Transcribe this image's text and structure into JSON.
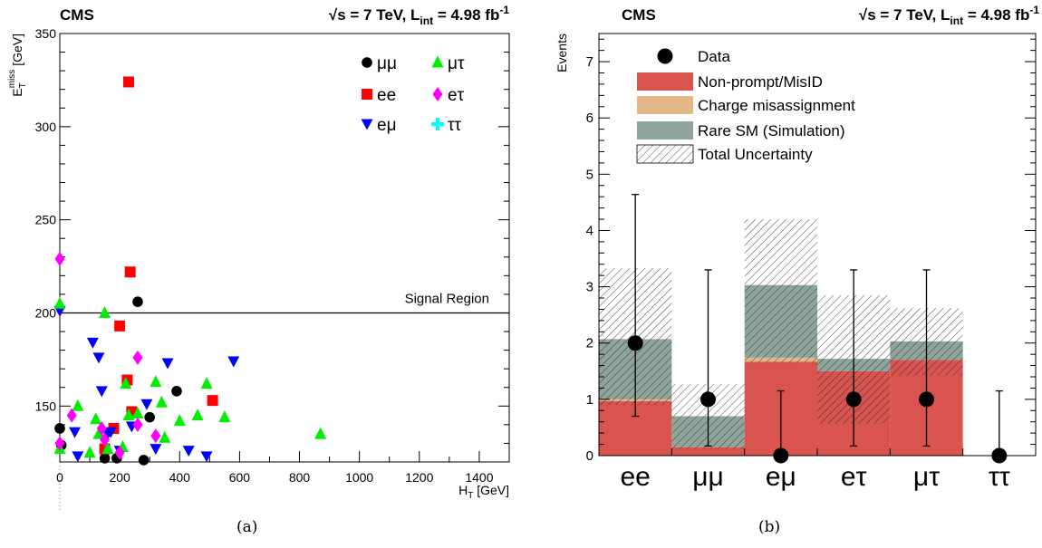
{
  "chart_data": [
    {
      "type": "scatter",
      "header_left": "CMS",
      "header_right": "√s = 7 TeV, L",
      "header_right_sub": "int",
      "header_right_tail": " = 4.98 fb",
      "header_right_sup": "-1",
      "xlabel": "H",
      "xlabel_sub": "T",
      "xlabel_tail": " [GeV]",
      "ylabel": "E",
      "ylabel_sub": "T",
      "ylabel_sup": "miss",
      "ylabel_tail": " [GeV]",
      "xlim": [
        0,
        1500
      ],
      "ylim": [
        120,
        350
      ],
      "xticks": [
        0,
        200,
        400,
        600,
        800,
        1000,
        1200,
        1400
      ],
      "yticks": [
        150,
        200,
        250,
        300,
        350
      ],
      "signal_region": {
        "y": 200,
        "label": "Signal Region"
      },
      "legend_placement": "top-right",
      "series": [
        {
          "name": "μμ",
          "marker": "circle",
          "color": "#000000",
          "points": [
            [
              0,
              138
            ],
            [
              5,
              129
            ],
            [
              150,
              122
            ],
            [
              190,
              122
            ],
            [
              260,
              206
            ],
            [
              280,
              121
            ],
            [
              300,
              144
            ],
            [
              390,
              158
            ]
          ]
        },
        {
          "name": "ee",
          "marker": "square",
          "color": "#ff0000",
          "points": [
            [
              150,
              127
            ],
            [
              180,
              138
            ],
            [
              200,
              193
            ],
            [
              225,
              164
            ],
            [
              230,
              324
            ],
            [
              235,
              222
            ],
            [
              240,
              147
            ],
            [
              510,
              153
            ]
          ]
        },
        {
          "name": "eμ",
          "marker": "tri-down",
          "color": "#0000ff",
          "points": [
            [
              0,
              201
            ],
            [
              50,
              136
            ],
            [
              60,
              123
            ],
            [
              110,
              184
            ],
            [
              130,
              176
            ],
            [
              140,
              158
            ],
            [
              160,
              135
            ],
            [
              170,
              136
            ],
            [
              200,
              126
            ],
            [
              240,
              139
            ],
            [
              290,
              151
            ],
            [
              320,
              127
            ],
            [
              360,
              173
            ],
            [
              430,
              126
            ],
            [
              490,
              123
            ],
            [
              580,
              174
            ]
          ]
        },
        {
          "name": "μτ",
          "marker": "tri-up",
          "color": "#00ee00",
          "points": [
            [
              0,
              127
            ],
            [
              0,
              205
            ],
            [
              60,
              150
            ],
            [
              100,
              125
            ],
            [
              120,
              143
            ],
            [
              130,
              135
            ],
            [
              150,
              200
            ],
            [
              160,
              127
            ],
            [
              210,
              128
            ],
            [
              220,
              162
            ],
            [
              230,
              145
            ],
            [
              260,
              146
            ],
            [
              320,
              163
            ],
            [
              340,
              152
            ],
            [
              350,
              133
            ],
            [
              400,
              142
            ],
            [
              460,
              145
            ],
            [
              490,
              162
            ],
            [
              550,
              144
            ],
            [
              870,
              135
            ]
          ]
        },
        {
          "name": "eτ",
          "marker": "diamond",
          "color": "#ff00ff",
          "points": [
            [
              0,
              130
            ],
            [
              0,
              229
            ],
            [
              40,
              145
            ],
            [
              140,
              138
            ],
            [
              150,
              132
            ],
            [
              200,
              125
            ],
            [
              260,
              176
            ],
            [
              260,
              140
            ],
            [
              320,
              134
            ]
          ]
        },
        {
          "name": "ττ",
          "marker": "cross",
          "color": "#00ffff",
          "points": []
        }
      ]
    },
    {
      "type": "bar",
      "stacked": true,
      "header_left": "CMS",
      "header_right": "√s = 7 TeV, L",
      "header_right_sub": "int",
      "header_right_tail": " = 4.98 fb",
      "header_right_sup": "-1",
      "ylabel": "Events",
      "ylim": [
        0,
        7.5
      ],
      "yticks": [
        0,
        1,
        2,
        3,
        4,
        5,
        6,
        7
      ],
      "categories": [
        "ee",
        "μμ",
        "eμ",
        "eτ",
        "μτ",
        "ττ"
      ],
      "legend_placement": "top-left",
      "series": [
        {
          "name": "Non-prompt/MisID",
          "color": "#d9534f",
          "values": [
            0.97,
            0.15,
            1.67,
            1.5,
            1.7,
            0.0
          ]
        },
        {
          "name": "Charge misassignment",
          "color": "#e4b886",
          "values": [
            0.03,
            0.0,
            0.07,
            0.0,
            0.0,
            0.0
          ]
        },
        {
          "name": "Rare SM (Simulation)",
          "color": "#8fa59b",
          "values": [
            1.07,
            0.55,
            1.29,
            0.22,
            0.33,
            0.0
          ]
        }
      ],
      "uncertainty": {
        "name": "Total Uncertainty",
        "bands": [
          [
            0.9,
            3.33
          ],
          [
            0.12,
            1.27
          ],
          [
            1.65,
            4.2
          ],
          [
            0.57,
            2.85
          ],
          [
            1.42,
            2.62
          ],
          [
            0,
            0
          ]
        ]
      },
      "data": {
        "name": "Data",
        "values": [
          2,
          1,
          0,
          1,
          1,
          0
        ],
        "err_low": [
          1.3,
          0.83,
          0,
          0.83,
          0.83,
          0
        ],
        "err_high": [
          2.64,
          2.3,
          1.15,
          2.3,
          2.3,
          1.15
        ]
      }
    }
  ],
  "captions": [
    "(a)",
    "(b)"
  ]
}
